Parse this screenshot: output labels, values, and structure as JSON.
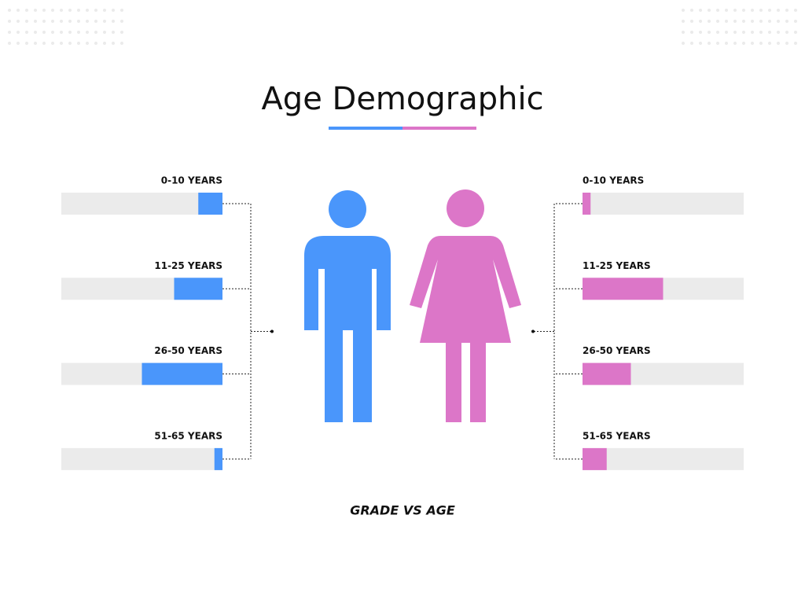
{
  "chart_data": {
    "type": "bar",
    "title": "Age Demographic",
    "xlabel": "GRADE VS AGE",
    "categories": [
      "0-10 YEARS",
      "11-25 YEARS",
      "26-50 YEARS",
      "51-65 YEARS"
    ],
    "series": [
      {
        "color": "#4a96fb",
        "values": [
          15,
          30,
          50,
          5
        ]
      },
      {
        "color": "#dc76c8",
        "values": [
          5,
          50,
          30,
          15
        ]
      }
    ],
    "xlim": [
      0,
      100
    ]
  }
}
